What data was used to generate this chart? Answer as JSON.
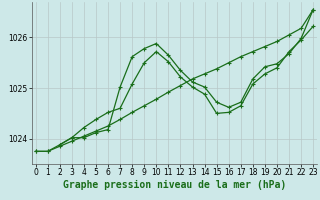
{
  "title": "Graphe pression niveau de la mer (hPa)",
  "background_color": "#cde8e8",
  "grid_color": "#b8c8c8",
  "line_color": "#1a6e1a",
  "xlim": [
    -0.3,
    23.3
  ],
  "ylim": [
    1023.5,
    1026.7
  ],
  "yticks": [
    1024,
    1025,
    1026
  ],
  "xticks": [
    0,
    1,
    2,
    3,
    4,
    5,
    6,
    7,
    8,
    9,
    10,
    11,
    12,
    13,
    14,
    15,
    16,
    17,
    18,
    19,
    20,
    21,
    22,
    23
  ],
  "series1_x": [
    0,
    1,
    2,
    3,
    4,
    5,
    6,
    7,
    8,
    9,
    10,
    11,
    12,
    13,
    14,
    15,
    16,
    17,
    18,
    19,
    20,
    21,
    22,
    23
  ],
  "series1_y": [
    1023.75,
    1023.75,
    1023.85,
    1023.95,
    1024.05,
    1024.15,
    1024.25,
    1024.38,
    1024.52,
    1024.65,
    1024.78,
    1024.92,
    1025.05,
    1025.18,
    1025.28,
    1025.38,
    1025.5,
    1025.62,
    1025.72,
    1025.82,
    1025.92,
    1026.05,
    1026.18,
    1026.55
  ],
  "series2_x": [
    0,
    1,
    2,
    3,
    4,
    5,
    6,
    7,
    8,
    9,
    10,
    11,
    12,
    13,
    14,
    15,
    16,
    17,
    18,
    19,
    20,
    21,
    22,
    23
  ],
  "series2_y": [
    1023.75,
    1023.75,
    1023.88,
    1024.02,
    1024.22,
    1024.38,
    1024.52,
    1024.6,
    1025.08,
    1025.5,
    1025.72,
    1025.52,
    1025.22,
    1025.02,
    1024.88,
    1024.5,
    1024.52,
    1024.65,
    1025.08,
    1025.28,
    1025.4,
    1025.72,
    1025.95,
    1026.22
  ],
  "series3_x": [
    2,
    3,
    4,
    5,
    6,
    7,
    8,
    9,
    10,
    11,
    12,
    13,
    14,
    15,
    16,
    17,
    18,
    19,
    20,
    21,
    22,
    23
  ],
  "series3_y": [
    1023.88,
    1024.02,
    1024.02,
    1024.12,
    1024.18,
    1025.02,
    1025.62,
    1025.78,
    1025.88,
    1025.65,
    1025.35,
    1025.12,
    1025.02,
    1024.72,
    1024.62,
    1024.72,
    1025.18,
    1025.42,
    1025.48,
    1025.68,
    1025.98,
    1026.55
  ],
  "tick_fontsize": 5.5,
  "xlabel_fontsize": 7.0
}
